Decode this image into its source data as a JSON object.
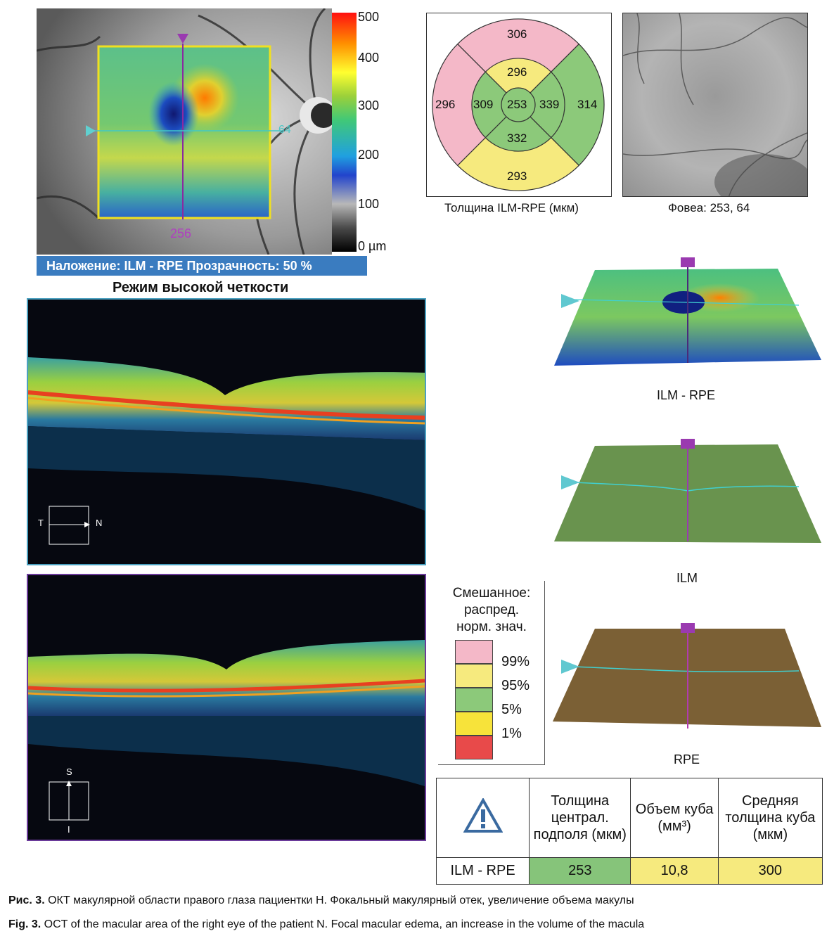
{
  "colorbar": {
    "ticks": [
      "500",
      "400",
      "300",
      "200",
      "100",
      "0 µm"
    ]
  },
  "fundus_overlay": {
    "vertical_marker_label": "256",
    "horizontal_marker_label": "64",
    "bar_text": "Наложение: ILM - RPE  Прозрачность: 50 %"
  },
  "hd_mode_title": "Режим высокой четкости",
  "sector_chart": {
    "outer": {
      "top": "306",
      "left": "296",
      "right": "314",
      "bottom": "293"
    },
    "inner": {
      "top": "296",
      "left": "309",
      "right": "339",
      "bottom": "332"
    },
    "center": "253",
    "caption": "Толщина ILM-RPE (мкм)",
    "colors": {
      "pink": "#f4b8c8",
      "yellow": "#f6ea7e",
      "green": "#8cc97a"
    }
  },
  "fovea_caption": "Фовеа: 253, 64",
  "bscan_horizontal": {
    "left_label": "T",
    "right_label": "N"
  },
  "bscan_vertical": {
    "top_label": "S",
    "bottom_label": "I"
  },
  "surfaces": {
    "ilm_rpe": "ILM - RPE",
    "ilm": "ILM",
    "rpe": "RPE"
  },
  "legend": {
    "title_lines": [
      "Смешанное:",
      "распред.",
      "норм. знач."
    ],
    "levels": [
      "99%",
      "95%",
      "5%",
      "1%"
    ],
    "colors": [
      "#f4b8c8",
      "#f6ea7e",
      "#8cc97a",
      "#f7e33a",
      "#e84a4a"
    ]
  },
  "stats_table": {
    "headers": [
      "Толщина централ. подполя (мкм)",
      "Объем куба (мм³)",
      "Средняя толщина куба (мкм)"
    ],
    "row_label": "ILM - RPE",
    "values": [
      "253",
      "10,8",
      "300"
    ],
    "value_colors": [
      "#86c47a",
      "#f6ea7e",
      "#f6ea7e"
    ]
  },
  "captions": {
    "ru_bold": "Рис. 3.",
    "ru_text": " ОКТ макулярной области правого глаза пациентки Н. Фокальный макулярный отек, увеличение объема макулы",
    "en_bold": "Fig. 3.",
    "en_text": " OCT of the macular area of the right eye of the patient N. Focal macular edema, an increase in the volume of the macula"
  }
}
